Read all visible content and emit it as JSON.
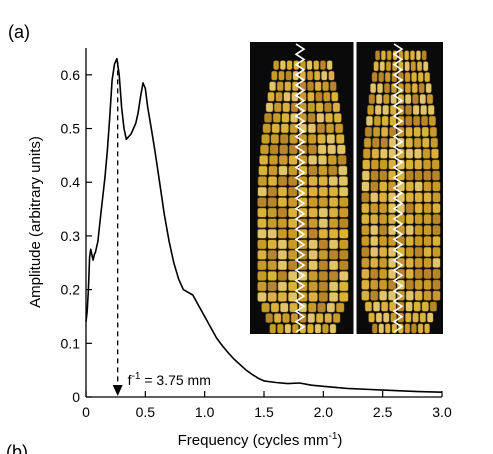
{
  "panel_labels": {
    "top": "(a)",
    "bottom": "(b)"
  },
  "chart_data": {
    "type": "line",
    "xlabel": "Frequency (cycles mm",
    "xlabel_sup": "-1",
    "xlabel_suffix": ")",
    "ylabel": "Amplitude (arbitrary units)",
    "xlim": [
      0,
      3.0
    ],
    "ylim": [
      0,
      0.65
    ],
    "x_ticks": [
      0,
      0.5,
      1.0,
      1.5,
      2.0,
      2.5,
      3.0
    ],
    "x_tick_labels": [
      "0",
      "0.5",
      "1.0",
      "1.5",
      "2.0",
      "2.5",
      "3.0"
    ],
    "y_ticks": [
      0,
      0.1,
      0.2,
      0.3,
      0.4,
      0.5,
      0.6
    ],
    "y_tick_labels": [
      "0",
      "0.1",
      "0.2",
      "0.3",
      "0.4",
      "0.5",
      "0.6"
    ],
    "grid": false,
    "series": [
      {
        "color": "#000000",
        "points": [
          [
            0.0,
            0.14
          ],
          [
            0.01,
            0.16
          ],
          [
            0.02,
            0.2
          ],
          [
            0.03,
            0.26
          ],
          [
            0.04,
            0.275
          ],
          [
            0.05,
            0.265
          ],
          [
            0.06,
            0.255
          ],
          [
            0.07,
            0.265
          ],
          [
            0.08,
            0.27
          ],
          [
            0.1,
            0.29
          ],
          [
            0.12,
            0.33
          ],
          [
            0.14,
            0.37
          ],
          [
            0.16,
            0.41
          ],
          [
            0.18,
            0.46
          ],
          [
            0.2,
            0.52
          ],
          [
            0.22,
            0.59
          ],
          [
            0.24,
            0.62
          ],
          [
            0.26,
            0.63
          ],
          [
            0.28,
            0.6
          ],
          [
            0.3,
            0.54
          ],
          [
            0.32,
            0.5
          ],
          [
            0.34,
            0.48
          ],
          [
            0.36,
            0.485
          ],
          [
            0.38,
            0.49
          ],
          [
            0.4,
            0.5
          ],
          [
            0.42,
            0.51
          ],
          [
            0.44,
            0.53
          ],
          [
            0.46,
            0.56
          ],
          [
            0.48,
            0.585
          ],
          [
            0.5,
            0.575
          ],
          [
            0.52,
            0.54
          ],
          [
            0.55,
            0.5
          ],
          [
            0.58,
            0.46
          ],
          [
            0.62,
            0.4
          ],
          [
            0.66,
            0.34
          ],
          [
            0.7,
            0.29
          ],
          [
            0.74,
            0.25
          ],
          [
            0.78,
            0.22
          ],
          [
            0.82,
            0.2
          ],
          [
            0.86,
            0.195
          ],
          [
            0.9,
            0.19
          ],
          [
            0.95,
            0.17
          ],
          [
            1.0,
            0.15
          ],
          [
            1.05,
            0.13
          ],
          [
            1.1,
            0.11
          ],
          [
            1.15,
            0.095
          ],
          [
            1.2,
            0.082
          ],
          [
            1.25,
            0.07
          ],
          [
            1.3,
            0.06
          ],
          [
            1.35,
            0.05
          ],
          [
            1.4,
            0.042
          ],
          [
            1.45,
            0.035
          ],
          [
            1.5,
            0.03
          ],
          [
            1.6,
            0.027
          ],
          [
            1.7,
            0.025
          ],
          [
            1.8,
            0.026
          ],
          [
            1.9,
            0.022
          ],
          [
            2.0,
            0.02
          ],
          [
            2.2,
            0.016
          ],
          [
            2.4,
            0.014
          ],
          [
            2.6,
            0.012
          ],
          [
            2.8,
            0.01
          ],
          [
            3.0,
            0.009
          ]
        ]
      }
    ],
    "marker": {
      "x": 0.267,
      "label": "f",
      "label_sup": "-1",
      "label_suffix": " = 3.75 mm"
    }
  },
  "photo": {
    "background": "#0a0a0a",
    "divider": "#ffffff",
    "kernel_colors": [
      "#d9b13c",
      "#c89a2a",
      "#e0c46a",
      "#b8862a"
    ],
    "wave_color": "#ffffff"
  }
}
